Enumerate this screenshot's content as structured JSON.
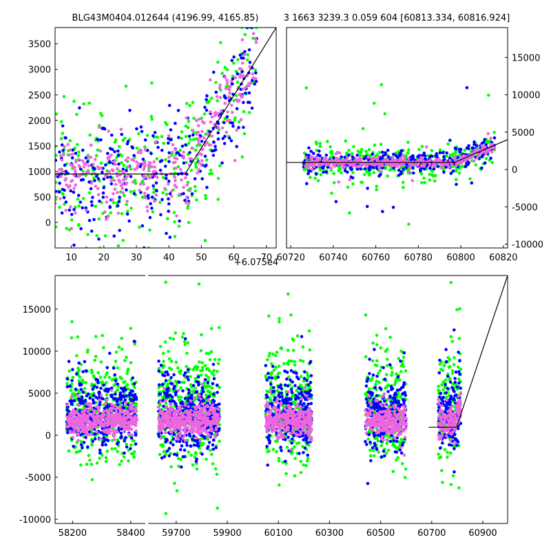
{
  "chart_data": [
    {
      "id": "zoom",
      "type": "scatter",
      "title": "BLG43M0404.012644 (4196.99, 4165.85)",
      "offset_label": "+6.075e4",
      "xlim": [
        5,
        73
      ],
      "ylim": [
        -500,
        3820
      ],
      "xticks": [
        "10",
        "20",
        "30",
        "40",
        "50",
        "60",
        "70"
      ],
      "yticks": [
        "0",
        "500",
        "1000",
        "1500",
        "2000",
        "2500",
        "3000",
        "3500"
      ],
      "series_colors": [
        "#00ff00",
        "#0000ff",
        "#ee66dd"
      ],
      "model_line": {
        "x": [
          5,
          45,
          73
        ],
        "y": [
          950,
          950,
          3820
        ]
      }
    },
    {
      "id": "recent",
      "type": "scatter",
      "title": "3 1663 3239.3 0.059 604 [60813.334, 60816.924]",
      "xlim": [
        60718,
        60822
      ],
      "ylim": [
        -10500,
        19000
      ],
      "xticks": [
        "60720",
        "60740",
        "60760",
        "60780",
        "60800",
        "60820"
      ],
      "yticks": [
        "-10000",
        "-5000",
        "0",
        "5000",
        "10000",
        "15000"
      ],
      "series_colors": [
        "#00ff00",
        "#0000ff",
        "#ee66dd"
      ],
      "model_line": {
        "x": [
          60718,
          60797,
          60822
        ],
        "y": [
          950,
          950,
          4000
        ]
      }
    },
    {
      "id": "full",
      "type": "scatter",
      "title": "",
      "ylim": [
        -10500,
        19000
      ],
      "yticks": [
        "-10000",
        "-5000",
        "0",
        "5000",
        "10000",
        "15000"
      ],
      "series_colors": [
        "#00ff00",
        "#0000ff",
        "#ee66dd"
      ],
      "segments": [
        {
          "xlim": [
            58140,
            58450
          ],
          "xticks": [
            "58200",
            "58400"
          ]
        },
        {
          "xlim": [
            59590,
            60997
          ],
          "xticks": [
            "59700",
            "59900",
            "60100",
            "60300",
            "60500",
            "60700",
            "60900"
          ]
        }
      ],
      "seasons": [
        [
          58180,
          58420
        ],
        [
          59630,
          59870
        ],
        [
          60050,
          60230
        ],
        [
          60440,
          60600
        ],
        [
          60725,
          60815
        ]
      ],
      "model_line": {
        "x": [
          60688,
          60797,
          60997
        ],
        "y": [
          950,
          950,
          19000
        ]
      }
    }
  ]
}
